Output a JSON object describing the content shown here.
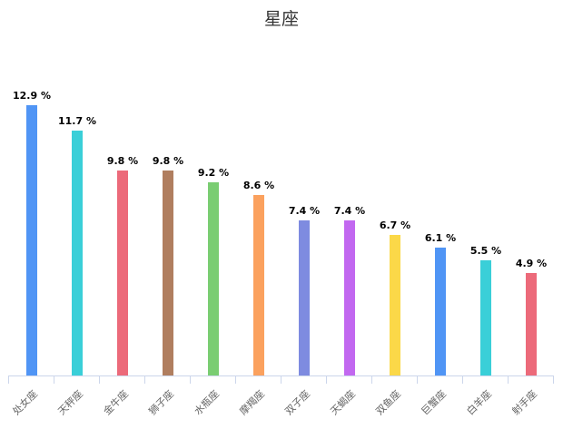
{
  "title": "星座",
  "chart_data": {
    "type": "bar",
    "title": "星座",
    "xlabel": "",
    "ylabel": "",
    "categories": [
      "处女座",
      "天秤座",
      "金牛座",
      "狮子座",
      "水瓶座",
      "摩羯座",
      "双子座",
      "天蝎座",
      "双鱼座",
      "巨蟹座",
      "白羊座",
      "射手座"
    ],
    "values": [
      12.9,
      11.7,
      9.8,
      9.8,
      9.2,
      8.6,
      7.4,
      7.4,
      6.7,
      6.1,
      5.5,
      4.9
    ],
    "labels": [
      "12.9 %",
      "11.7 %",
      "9.8 %",
      "9.8 %",
      "9.2 %",
      "8.6 %",
      "7.4 %",
      "7.4 %",
      "6.7 %",
      "6.1 %",
      "5.5 %",
      "4.9 %"
    ],
    "colors": [
      "#5095f5",
      "#3acfd8",
      "#ec6a7a",
      "#b07e5f",
      "#7acd72",
      "#fba15e",
      "#7e8be0",
      "#c268f0",
      "#fbd848",
      "#5095f5",
      "#3acfd8",
      "#ec6a7a"
    ],
    "grid": false,
    "legend": "none",
    "data_label_suffix": " %",
    "ylim": [
      0,
      13.5
    ]
  }
}
